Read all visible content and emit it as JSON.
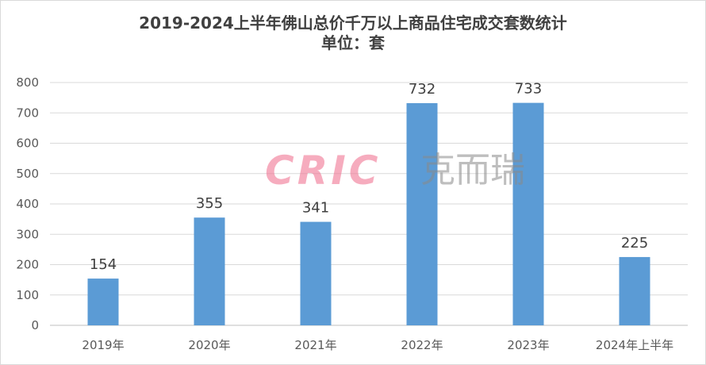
{
  "chart_data": {
    "type": "bar",
    "title": "2019-2024上半年佛山总价千万以上商品住宅成交套数统计",
    "subtitle": "单位：套",
    "categories": [
      "2019年",
      "2020年",
      "2021年",
      "2022年",
      "2023年",
      "2024年上半年"
    ],
    "values": [
      154,
      355,
      341,
      732,
      733,
      225
    ],
    "ylim": [
      0,
      800
    ],
    "yticks": [
      0,
      100,
      200,
      300,
      400,
      500,
      600,
      700,
      800
    ],
    "grid": true,
    "legend": "none",
    "bar_color": "#5b9bd5",
    "data_labels": true
  },
  "watermark": {
    "latin": "CRIC",
    "cjk": "克而瑞"
  }
}
